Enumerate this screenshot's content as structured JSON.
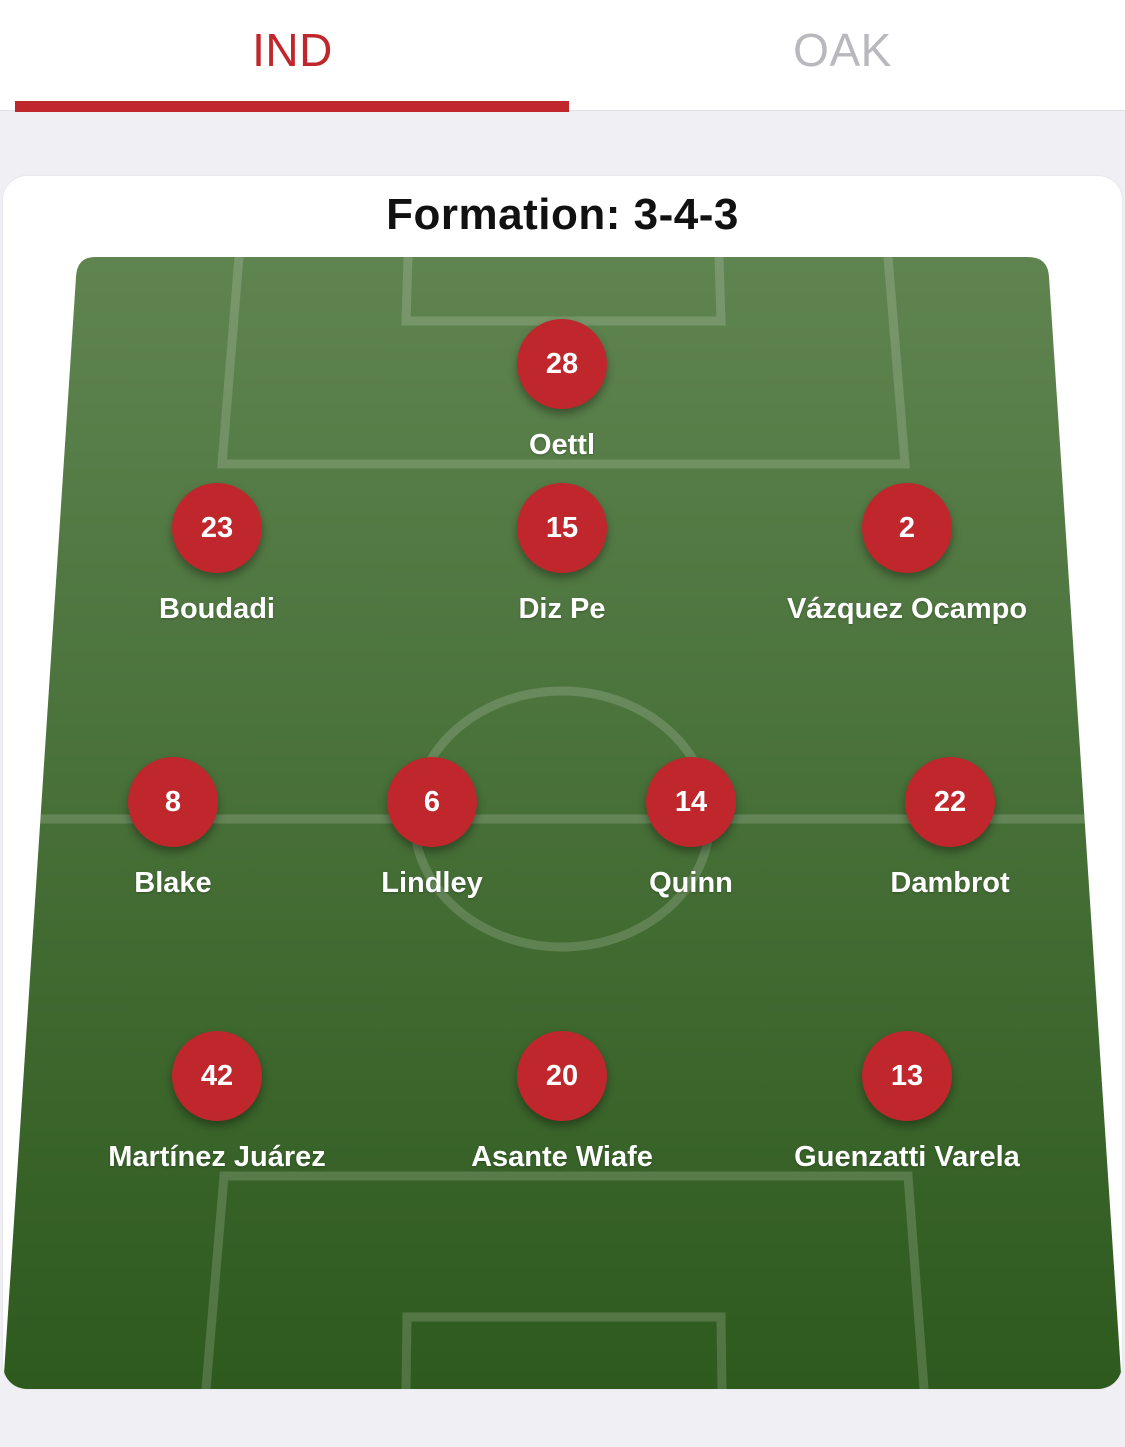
{
  "tabs": {
    "home": "IND",
    "away": "OAK",
    "active": "home"
  },
  "formation_label": "Formation: 3-4-3",
  "colors": {
    "accent": "#c0272d",
    "pitch_top": "#5f8450",
    "pitch_bottom": "#2e5a1e"
  },
  "players": [
    {
      "number": "28",
      "name": "Oettl",
      "role": "goalkeeper"
    },
    {
      "number": "23",
      "name": "Boudadi",
      "role": "defender"
    },
    {
      "number": "15",
      "name": "Diz Pe",
      "role": "defender"
    },
    {
      "number": "2",
      "name": "Vázquez Ocampo",
      "role": "defender"
    },
    {
      "number": "8",
      "name": "Blake",
      "role": "midfielder"
    },
    {
      "number": "6",
      "name": "Lindley",
      "role": "midfielder"
    },
    {
      "number": "14",
      "name": "Quinn",
      "role": "midfielder"
    },
    {
      "number": "22",
      "name": "Dambrot",
      "role": "midfielder"
    },
    {
      "number": "42",
      "name": "Martínez Juárez",
      "role": "forward"
    },
    {
      "number": "20",
      "name": "Asante Wiafe",
      "role": "forward"
    },
    {
      "number": "13",
      "name": "Guenzatti Varela",
      "role": "forward"
    }
  ]
}
